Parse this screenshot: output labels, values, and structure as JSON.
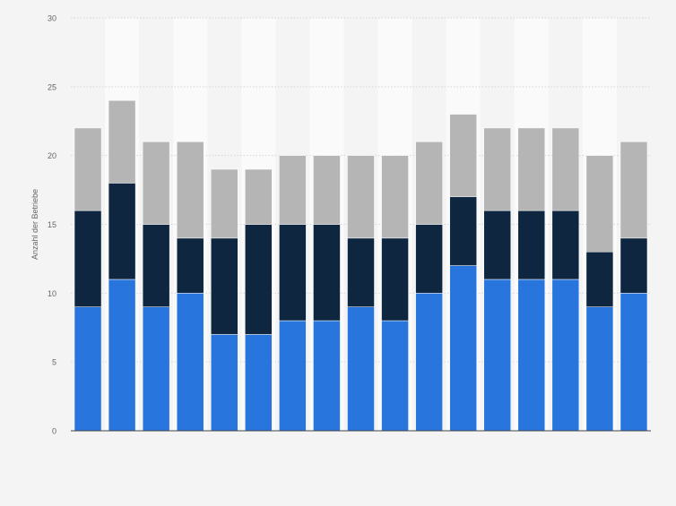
{
  "chart_data": {
    "type": "bar",
    "stacked": true,
    "categories": [
      "",
      "",
      "",
      "",
      "",
      "",
      "",
      "",
      "",
      "",
      "",
      "",
      "",
      "",
      "",
      "",
      ""
    ],
    "series": [
      {
        "name": "",
        "color": "#2875de",
        "values": [
          9,
          11,
          9,
          10,
          7,
          7,
          8,
          8,
          9,
          8,
          10,
          12,
          11,
          11,
          11,
          9,
          10
        ]
      },
      {
        "name": "",
        "color": "#0e2640",
        "values": [
          7,
          7,
          6,
          4,
          7,
          8,
          7,
          7,
          5,
          6,
          5,
          5,
          5,
          5,
          5,
          4,
          4
        ]
      },
      {
        "name": "",
        "color": "#b5b5b5",
        "values": [
          6,
          6,
          6,
          7,
          5,
          4,
          5,
          5,
          6,
          6,
          6,
          6,
          6,
          6,
          6,
          7,
          7
        ]
      }
    ],
    "ylabel": "Anzahl der Betriebe",
    "xlabel": "",
    "ylim": [
      0,
      30
    ],
    "yticks": [
      "0",
      "5",
      "10",
      "15",
      "20",
      "25",
      "30"
    ],
    "grid": true,
    "alternating_column_bands": true
  }
}
